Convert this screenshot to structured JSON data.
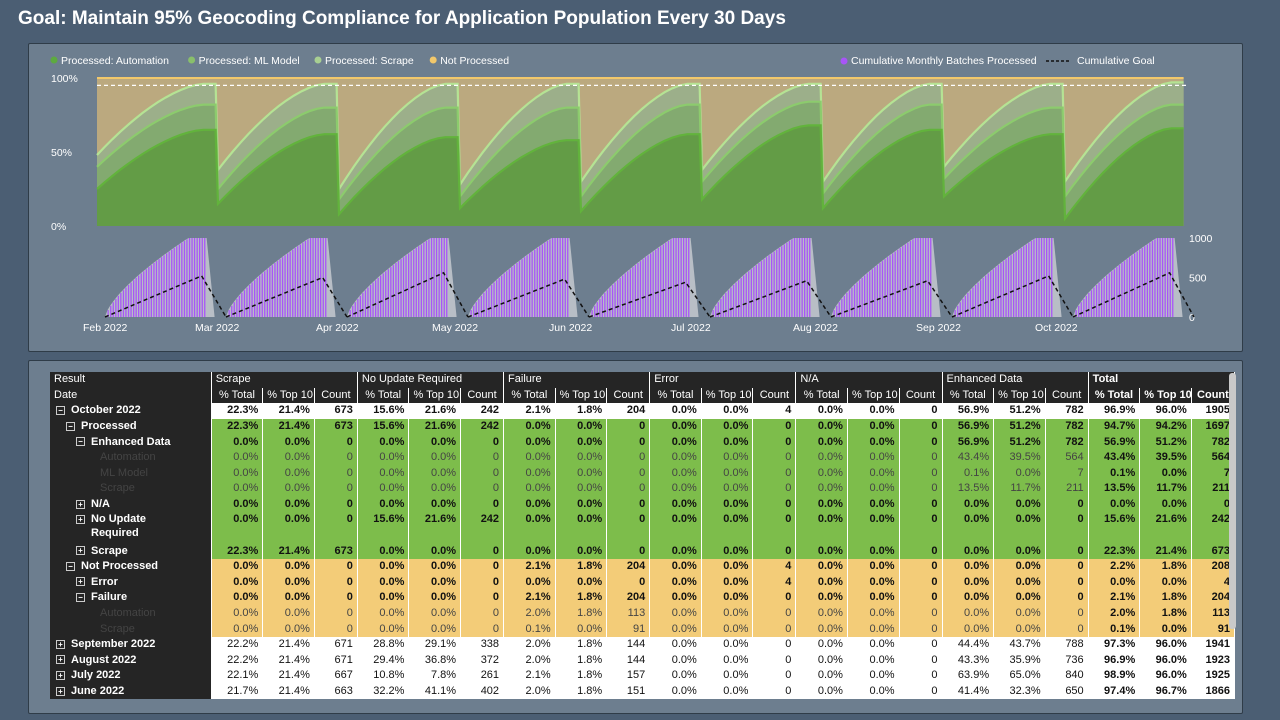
{
  "title": "Goal: Maintain 95% Geocoding Compliance for Application Population Every 30 Days",
  "chart": {
    "legend_left": [
      {
        "label": "Processed: Automation",
        "color": "#5daa3f"
      },
      {
        "label": "Processed: ML Model",
        "color": "#89bf6b"
      },
      {
        "label": "Processed: Scrape",
        "color": "#a8cf92"
      },
      {
        "label": "Not Processed",
        "color": "#f2c86b"
      }
    ],
    "legend_right": [
      {
        "label": "Cumulative Monthly Batches Processed",
        "color": "#a855f7"
      },
      {
        "label": "Cumulative Goal",
        "color": "#111111"
      }
    ],
    "y_top_ticks": [
      "100%",
      "50%",
      "0%"
    ],
    "y_bottom_ticks": [
      "1000",
      "500",
      "0"
    ],
    "x_ticks": [
      "Feb 2022",
      "Mar 2022",
      "Apr 2022",
      "May 2022",
      "Jun 2022",
      "Jul 2022",
      "Aug 2022",
      "Sep 2022",
      "Oct 2022"
    ]
  },
  "chart_data": {
    "type": "area",
    "months": [
      "Feb 2022",
      "Mar 2022",
      "Apr 2022",
      "May 2022",
      "Jun 2022",
      "Jul 2022",
      "Aug 2022",
      "Sep 2022",
      "Oct 2022"
    ],
    "top_panel": {
      "ylim": [
        0,
        100
      ],
      "goal_line": 95,
      "series": [
        {
          "name": "Processed: Automation",
          "cycle_start": [
            25,
            15,
            8,
            12,
            10,
            18,
            12,
            20,
            5
          ],
          "cycle_end": [
            65,
            62,
            60,
            58,
            62,
            68,
            65,
            62,
            66
          ]
        },
        {
          "name": "Processed: ML Model",
          "cycle_start": [
            40,
            25,
            18,
            20,
            20,
            30,
            22,
            32,
            20
          ],
          "cycle_end": [
            82,
            80,
            80,
            80,
            82,
            84,
            82,
            80,
            82
          ]
        },
        {
          "name": "Processed: Scrape",
          "cycle_start": [
            48,
            38,
            25,
            28,
            30,
            38,
            30,
            40,
            30
          ],
          "cycle_end": [
            96,
            96,
            96,
            96,
            96,
            96,
            96,
            96,
            97
          ]
        },
        {
          "name": "Not Processed",
          "cycle_start": [
            100,
            100,
            100,
            100,
            100,
            100,
            100,
            100,
            100
          ],
          "cycle_end": [
            100,
            100,
            100,
            100,
            100,
            100,
            100,
            100,
            100
          ]
        }
      ]
    },
    "bottom_panel": {
      "ylim": [
        0,
        1000
      ],
      "cumulative_batches_peak": [
        1000,
        1000,
        1000,
        1000,
        1000,
        1000,
        1000,
        1000,
        1000
      ],
      "cumulative_goal_peak": [
        520,
        500,
        560,
        480,
        440,
        460,
        460,
        520,
        560
      ]
    }
  },
  "table": {
    "headers_row1": [
      "Result",
      "Scrape",
      "No Update Required",
      "Failure",
      "Error",
      "N/A",
      "Enhanced Data",
      "Total"
    ],
    "headers_row2": [
      "Date",
      "% Total",
      "% Top 10",
      "Count",
      "% Total",
      "% Top 10",
      "Count",
      "% Total",
      "% Top 10",
      "Count",
      "% Total",
      "% Top 10",
      "Count",
      "% Total",
      "% Top 10",
      "Count",
      "% Total",
      "% Top 10",
      "Count",
      "% Total",
      "% Top 10",
      "Count"
    ],
    "rows": [
      {
        "label": "October 2022",
        "level": 0,
        "expander": "⊟",
        "style": "white bold",
        "cells": [
          "22.3%",
          "21.4%",
          "673",
          "15.6%",
          "21.6%",
          "242",
          "2.1%",
          "1.8%",
          "204",
          "0.0%",
          "0.0%",
          "4",
          "0.0%",
          "0.0%",
          "0",
          "56.9%",
          "51.2%",
          "782",
          "96.9%",
          "96.0%",
          "1905"
        ]
      },
      {
        "label": "Processed",
        "level": 1,
        "expander": "⊟",
        "style": "green bold",
        "cells": [
          "22.3%",
          "21.4%",
          "673",
          "15.6%",
          "21.6%",
          "242",
          "0.0%",
          "0.0%",
          "0",
          "0.0%",
          "0.0%",
          "0",
          "0.0%",
          "0.0%",
          "0",
          "56.9%",
          "51.2%",
          "782",
          "94.7%",
          "94.2%",
          "1697"
        ]
      },
      {
        "label": "Enhanced Data",
        "level": 2,
        "expander": "⊟",
        "style": "green bold",
        "cells": [
          "0.0%",
          "0.0%",
          "0",
          "0.0%",
          "0.0%",
          "0",
          "0.0%",
          "0.0%",
          "0",
          "0.0%",
          "0.0%",
          "0",
          "0.0%",
          "0.0%",
          "0",
          "56.9%",
          "51.2%",
          "782",
          "56.9%",
          "51.2%",
          "782"
        ]
      },
      {
        "label": "Automation",
        "level": 3,
        "expander": "",
        "style": "green lt",
        "cells": [
          "0.0%",
          "0.0%",
          "0",
          "0.0%",
          "0.0%",
          "0",
          "0.0%",
          "0.0%",
          "0",
          "0.0%",
          "0.0%",
          "0",
          "0.0%",
          "0.0%",
          "0",
          "43.4%",
          "39.5%",
          "564",
          "43.4%",
          "39.5%",
          "564"
        ]
      },
      {
        "label": "ML Model",
        "level": 3,
        "expander": "",
        "style": "green lt",
        "cells": [
          "0.0%",
          "0.0%",
          "0",
          "0.0%",
          "0.0%",
          "0",
          "0.0%",
          "0.0%",
          "0",
          "0.0%",
          "0.0%",
          "0",
          "0.0%",
          "0.0%",
          "0",
          "0.1%",
          "0.0%",
          "7",
          "0.1%",
          "0.0%",
          "7"
        ]
      },
      {
        "label": "Scrape",
        "level": 3,
        "expander": "",
        "style": "green lt",
        "cells": [
          "0.0%",
          "0.0%",
          "0",
          "0.0%",
          "0.0%",
          "0",
          "0.0%",
          "0.0%",
          "0",
          "0.0%",
          "0.0%",
          "0",
          "0.0%",
          "0.0%",
          "0",
          "13.5%",
          "11.7%",
          "211",
          "13.5%",
          "11.7%",
          "211"
        ]
      },
      {
        "label": "N/A",
        "level": 2,
        "expander": "⊞",
        "style": "green bold",
        "cells": [
          "0.0%",
          "0.0%",
          "0",
          "0.0%",
          "0.0%",
          "0",
          "0.0%",
          "0.0%",
          "0",
          "0.0%",
          "0.0%",
          "0",
          "0.0%",
          "0.0%",
          "0",
          "0.0%",
          "0.0%",
          "0",
          "0.0%",
          "0.0%",
          "0"
        ]
      },
      {
        "label": "No Update Required",
        "level": 2,
        "expander": "⊞",
        "style": "green bold tall",
        "cells": [
          "0.0%",
          "0.0%",
          "0",
          "15.6%",
          "21.6%",
          "242",
          "0.0%",
          "0.0%",
          "0",
          "0.0%",
          "0.0%",
          "0",
          "0.0%",
          "0.0%",
          "0",
          "0.0%",
          "0.0%",
          "0",
          "15.6%",
          "21.6%",
          "242"
        ]
      },
      {
        "label": "Scrape",
        "level": 2,
        "expander": "⊞",
        "style": "green bold",
        "cells": [
          "22.3%",
          "21.4%",
          "673",
          "0.0%",
          "0.0%",
          "0",
          "0.0%",
          "0.0%",
          "0",
          "0.0%",
          "0.0%",
          "0",
          "0.0%",
          "0.0%",
          "0",
          "0.0%",
          "0.0%",
          "0",
          "22.3%",
          "21.4%",
          "673"
        ]
      },
      {
        "label": "Not Processed",
        "level": 1,
        "expander": "⊟",
        "style": "orange bold",
        "cells": [
          "0.0%",
          "0.0%",
          "0",
          "0.0%",
          "0.0%",
          "0",
          "2.1%",
          "1.8%",
          "204",
          "0.0%",
          "0.0%",
          "4",
          "0.0%",
          "0.0%",
          "0",
          "0.0%",
          "0.0%",
          "0",
          "2.2%",
          "1.8%",
          "208"
        ]
      },
      {
        "label": "Error",
        "level": 2,
        "expander": "⊞",
        "style": "orange bold",
        "cells": [
          "0.0%",
          "0.0%",
          "0",
          "0.0%",
          "0.0%",
          "0",
          "0.0%",
          "0.0%",
          "0",
          "0.0%",
          "0.0%",
          "4",
          "0.0%",
          "0.0%",
          "0",
          "0.0%",
          "0.0%",
          "0",
          "0.0%",
          "0.0%",
          "4"
        ]
      },
      {
        "label": "Failure",
        "level": 2,
        "expander": "⊟",
        "style": "orange bold",
        "cells": [
          "0.0%",
          "0.0%",
          "0",
          "0.0%",
          "0.0%",
          "0",
          "2.1%",
          "1.8%",
          "204",
          "0.0%",
          "0.0%",
          "0",
          "0.0%",
          "0.0%",
          "0",
          "0.0%",
          "0.0%",
          "0",
          "2.1%",
          "1.8%",
          "204"
        ]
      },
      {
        "label": "Automation",
        "level": 3,
        "expander": "",
        "style": "orange lt",
        "cells": [
          "0.0%",
          "0.0%",
          "0",
          "0.0%",
          "0.0%",
          "0",
          "2.0%",
          "1.8%",
          "113",
          "0.0%",
          "0.0%",
          "0",
          "0.0%",
          "0.0%",
          "0",
          "0.0%",
          "0.0%",
          "0",
          "2.0%",
          "1.8%",
          "113"
        ]
      },
      {
        "label": "Scrape",
        "level": 3,
        "expander": "",
        "style": "orange lt",
        "cells": [
          "0.0%",
          "0.0%",
          "0",
          "0.0%",
          "0.0%",
          "0",
          "0.1%",
          "0.0%",
          "91",
          "0.0%",
          "0.0%",
          "0",
          "0.0%",
          "0.0%",
          "0",
          "0.0%",
          "0.0%",
          "0",
          "0.1%",
          "0.0%",
          "91"
        ]
      },
      {
        "label": "September 2022",
        "level": 0,
        "expander": "⊞",
        "style": "white",
        "cells": [
          "22.2%",
          "21.4%",
          "671",
          "28.8%",
          "29.1%",
          "338",
          "2.0%",
          "1.8%",
          "144",
          "0.0%",
          "0.0%",
          "0",
          "0.0%",
          "0.0%",
          "0",
          "44.4%",
          "43.7%",
          "788",
          "97.3%",
          "96.0%",
          "1941"
        ]
      },
      {
        "label": "August 2022",
        "level": 0,
        "expander": "⊞",
        "style": "white",
        "cells": [
          "22.2%",
          "21.4%",
          "671",
          "29.4%",
          "36.8%",
          "372",
          "2.0%",
          "1.8%",
          "144",
          "0.0%",
          "0.0%",
          "0",
          "0.0%",
          "0.0%",
          "0",
          "43.3%",
          "35.9%",
          "736",
          "96.9%",
          "96.0%",
          "1923"
        ]
      },
      {
        "label": "July 2022",
        "level": 0,
        "expander": "⊞",
        "style": "white",
        "cells": [
          "22.1%",
          "21.4%",
          "667",
          "10.8%",
          "7.8%",
          "261",
          "2.1%",
          "1.8%",
          "157",
          "0.0%",
          "0.0%",
          "0",
          "0.0%",
          "0.0%",
          "0",
          "63.9%",
          "65.0%",
          "840",
          "98.9%",
          "96.0%",
          "1925"
        ]
      },
      {
        "label": "June 2022",
        "level": 0,
        "expander": "⊞",
        "style": "white",
        "cells": [
          "21.7%",
          "21.4%",
          "663",
          "32.2%",
          "41.1%",
          "402",
          "2.0%",
          "1.8%",
          "151",
          "0.0%",
          "0.0%",
          "0",
          "0.0%",
          "0.0%",
          "0",
          "41.4%",
          "32.3%",
          "650",
          "97.4%",
          "96.7%",
          "1866"
        ]
      }
    ]
  }
}
